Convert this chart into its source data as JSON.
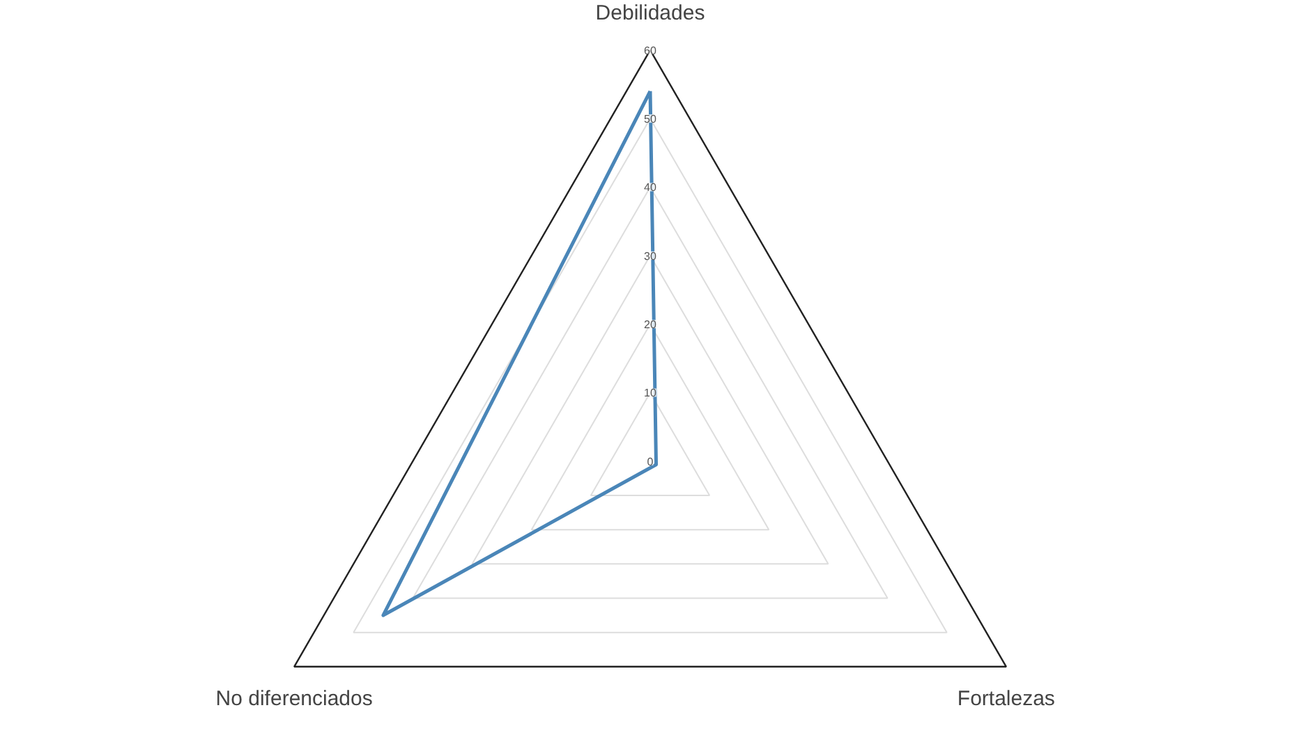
{
  "chart_data": {
    "type": "radar",
    "categories": [
      "Debilidades",
      "Fortalezas",
      "No diferenciados"
    ],
    "series": [
      {
        "color": "#4a86b8",
        "values": [
          54,
          1,
          45
        ]
      }
    ],
    "ylim": [
      0,
      60
    ],
    "yticks": [
      {
        "value": 0,
        "label": "0"
      },
      {
        "value": 10,
        "label": "10"
      },
      {
        "value": 20,
        "label": "20"
      },
      {
        "value": 30,
        "label": "30"
      },
      {
        "value": 40,
        "label": "40"
      },
      {
        "value": 50,
        "label": "50"
      },
      {
        "value": 60,
        "label": "60"
      }
    ],
    "grid": true
  }
}
